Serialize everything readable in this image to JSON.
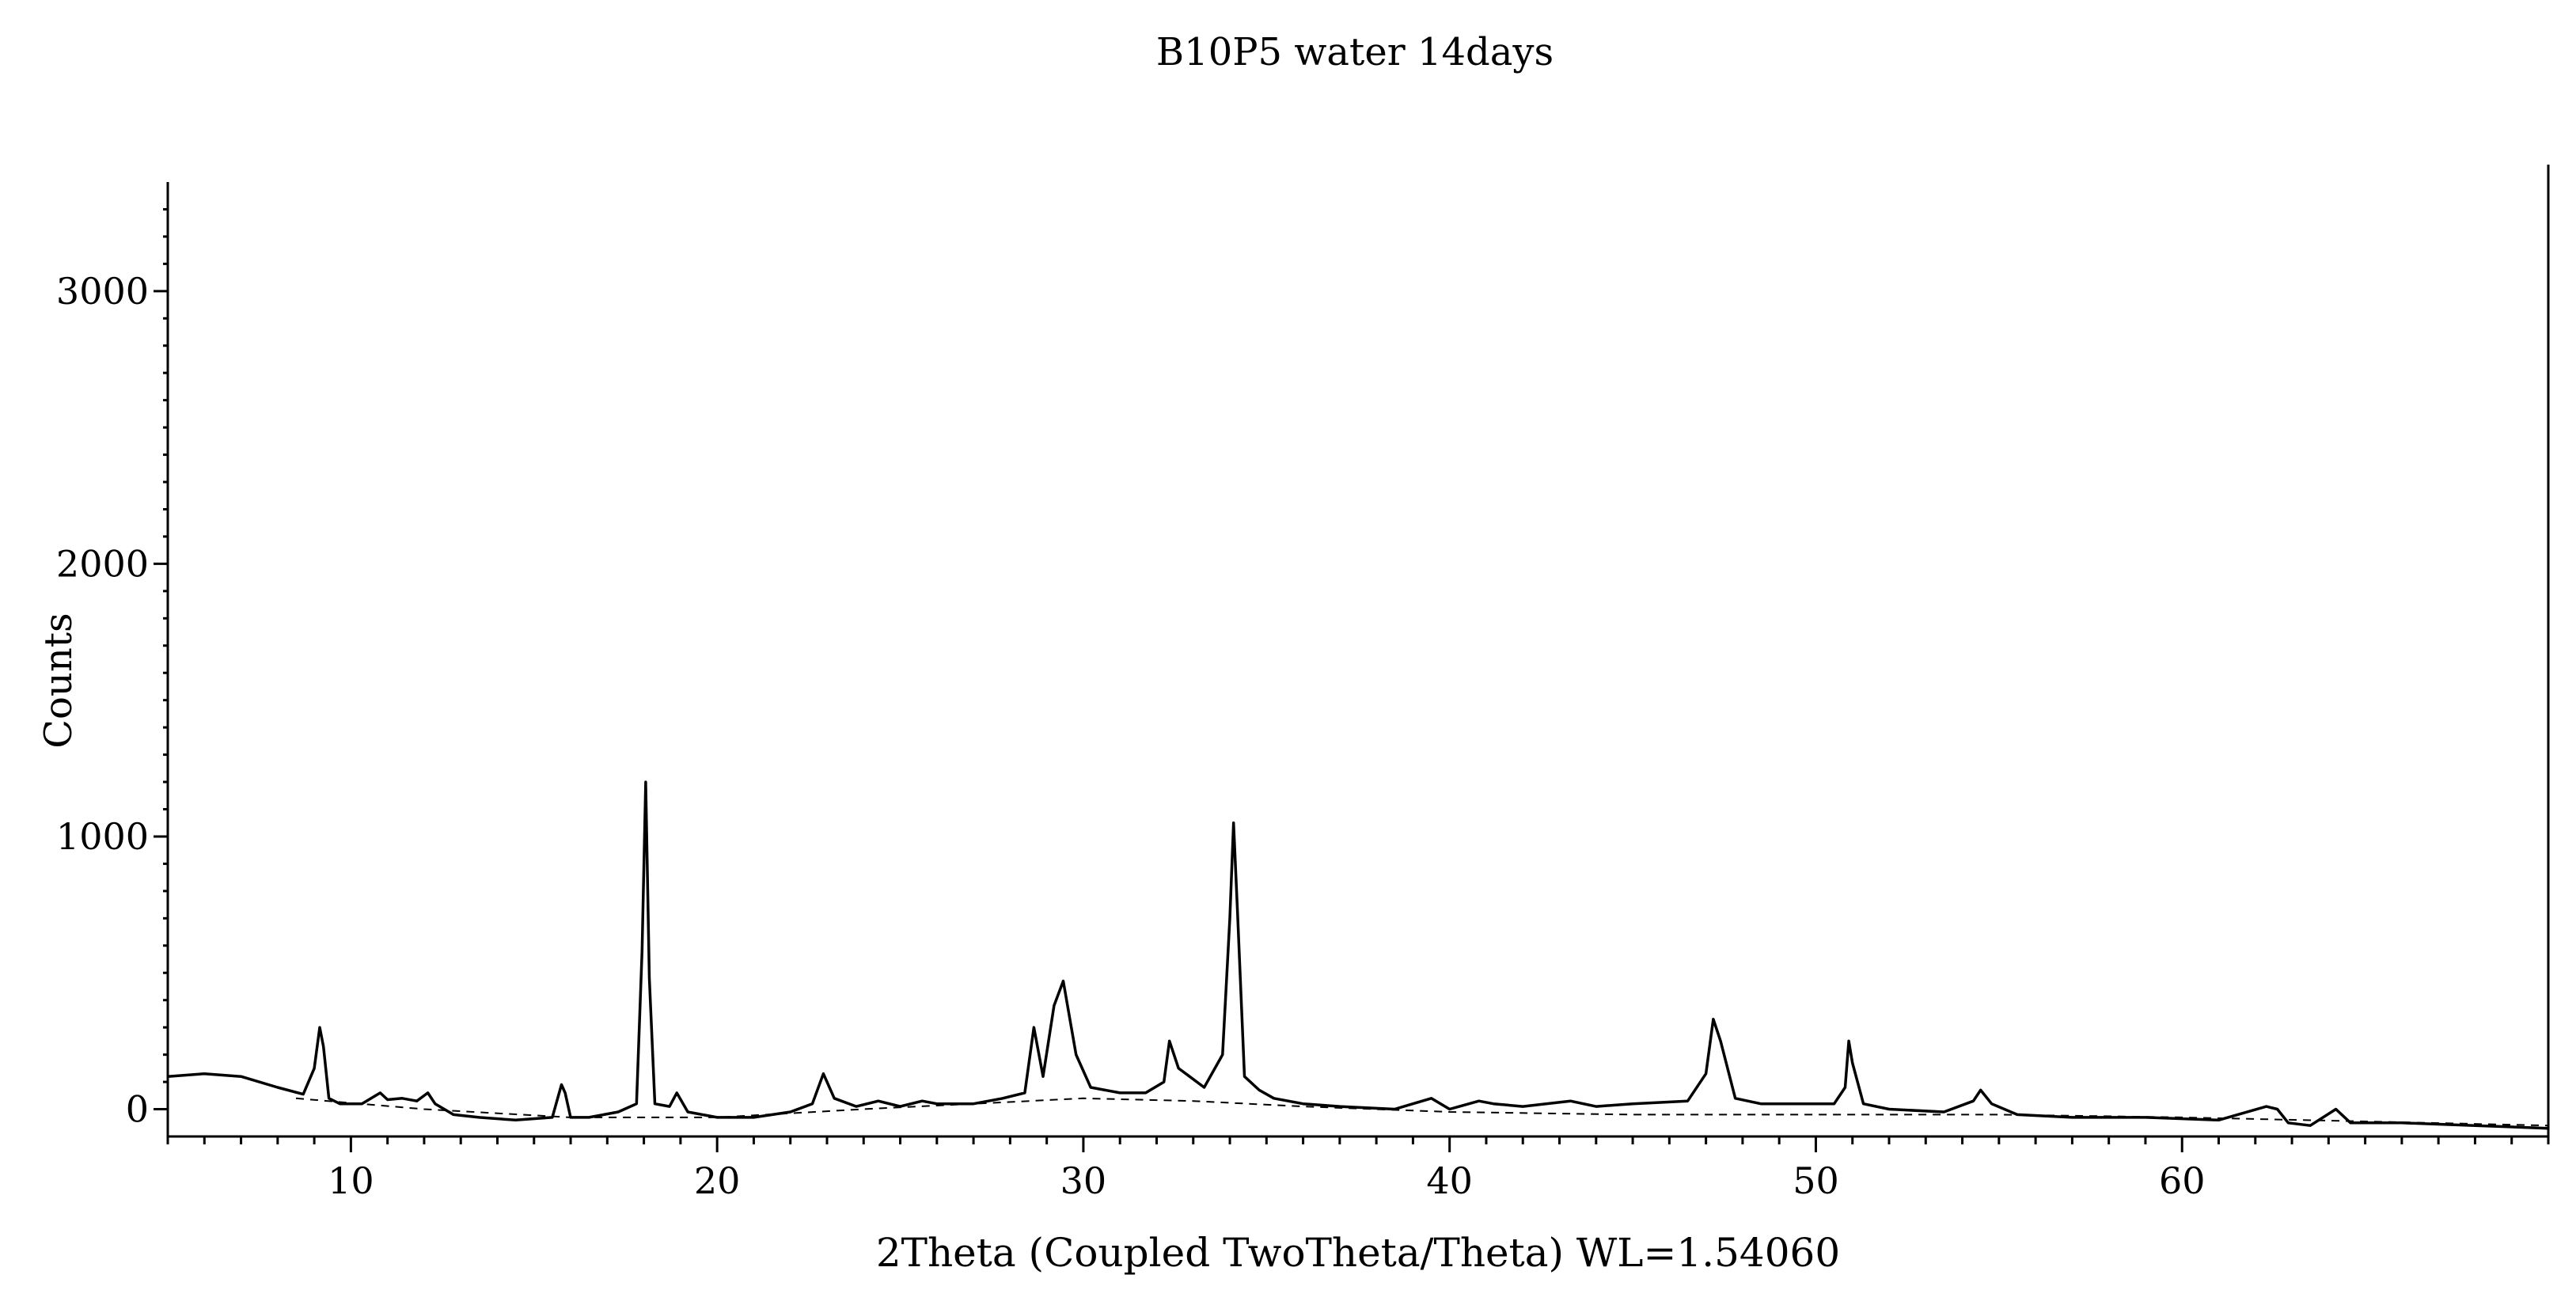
{
  "chart_data": {
    "type": "line",
    "title": "B10P5 water 14days",
    "xlabel": "2Theta (Coupled TwoTheta/Theta) WL=1.54060",
    "ylabel": "Counts",
    "xlim": [
      5,
      70
    ],
    "ylim": [
      -100,
      3400
    ],
    "x_ticks": [
      10,
      20,
      30,
      40,
      50,
      60
    ],
    "x_tick_labels": [
      "10",
      "20",
      "30",
      "40",
      "50",
      "60"
    ],
    "y_ticks": [
      0,
      1000,
      2000,
      3000
    ],
    "y_tick_labels": [
      "0",
      "1000",
      "2000",
      "3000"
    ],
    "grid": false,
    "legend": "none",
    "series": [
      {
        "style": "solid",
        "color": "#000000",
        "x": [
          5.0,
          6.0,
          7.0,
          8.0,
          8.7,
          9.0,
          9.15,
          9.25,
          9.4,
          9.7,
          10.3,
          10.8,
          11.0,
          11.4,
          11.8,
          12.1,
          12.3,
          12.8,
          13.5,
          14.5,
          15.5,
          15.75,
          15.85,
          16.0,
          16.5,
          17.3,
          17.8,
          17.95,
          18.05,
          18.15,
          18.3,
          18.7,
          18.9,
          19.2,
          20.0,
          21.0,
          22.0,
          22.6,
          22.9,
          23.2,
          23.8,
          24.4,
          25.0,
          25.6,
          26.0,
          27.0,
          27.8,
          28.4,
          28.65,
          28.9,
          29.2,
          29.45,
          29.8,
          30.2,
          31.0,
          31.7,
          32.2,
          32.35,
          32.6,
          32.9,
          33.3,
          33.8,
          34.0,
          34.1,
          34.2,
          34.4,
          34.8,
          35.2,
          36.0,
          37.0,
          38.5,
          39.5,
          40.0,
          40.8,
          41.2,
          42.0,
          43.3,
          44.0,
          45.0,
          46.5,
          47.0,
          47.2,
          47.4,
          47.8,
          48.5,
          49.5,
          50.5,
          50.8,
          50.9,
          51.0,
          51.3,
          52.0,
          53.5,
          54.3,
          54.5,
          54.8,
          55.5,
          57.0,
          59.0,
          61.0,
          62.3,
          62.6,
          62.9,
          63.5,
          64.2,
          64.6,
          66.0,
          68.0,
          70.0
        ],
        "y": [
          120,
          130,
          120,
          80,
          55,
          150,
          300,
          230,
          40,
          20,
          20,
          60,
          35,
          40,
          30,
          60,
          20,
          -20,
          -30,
          -40,
          -30,
          90,
          60,
          -30,
          -30,
          -10,
          20,
          580,
          1200,
          480,
          20,
          10,
          60,
          -10,
          -30,
          -30,
          -10,
          20,
          130,
          40,
          10,
          30,
          10,
          30,
          20,
          20,
          40,
          60,
          300,
          120,
          380,
          470,
          200,
          80,
          60,
          60,
          100,
          250,
          150,
          120,
          80,
          200,
          700,
          1050,
          750,
          120,
          70,
          40,
          20,
          10,
          0,
          40,
          0,
          30,
          20,
          10,
          30,
          10,
          20,
          30,
          130,
          330,
          250,
          40,
          20,
          20,
          20,
          80,
          250,
          170,
          20,
          0,
          -10,
          30,
          70,
          20,
          -20,
          -30,
          -30,
          -40,
          10,
          0,
          -50,
          -60,
          0,
          -50,
          -50,
          -60,
          -70
        ]
      },
      {
        "style": "dashed",
        "color": "#000000",
        "x": [
          8.5,
          12.0,
          16.0,
          20.0,
          24.0,
          27.0,
          30.0,
          33.0,
          36.0,
          40.0,
          45.0,
          50.0,
          55.0,
          60.0,
          65.0,
          70.0
        ],
        "y": [
          40,
          0,
          -30,
          -30,
          0,
          20,
          40,
          30,
          10,
          -10,
          -20,
          -20,
          -20,
          -30,
          -45,
          -60
        ]
      }
    ]
  }
}
